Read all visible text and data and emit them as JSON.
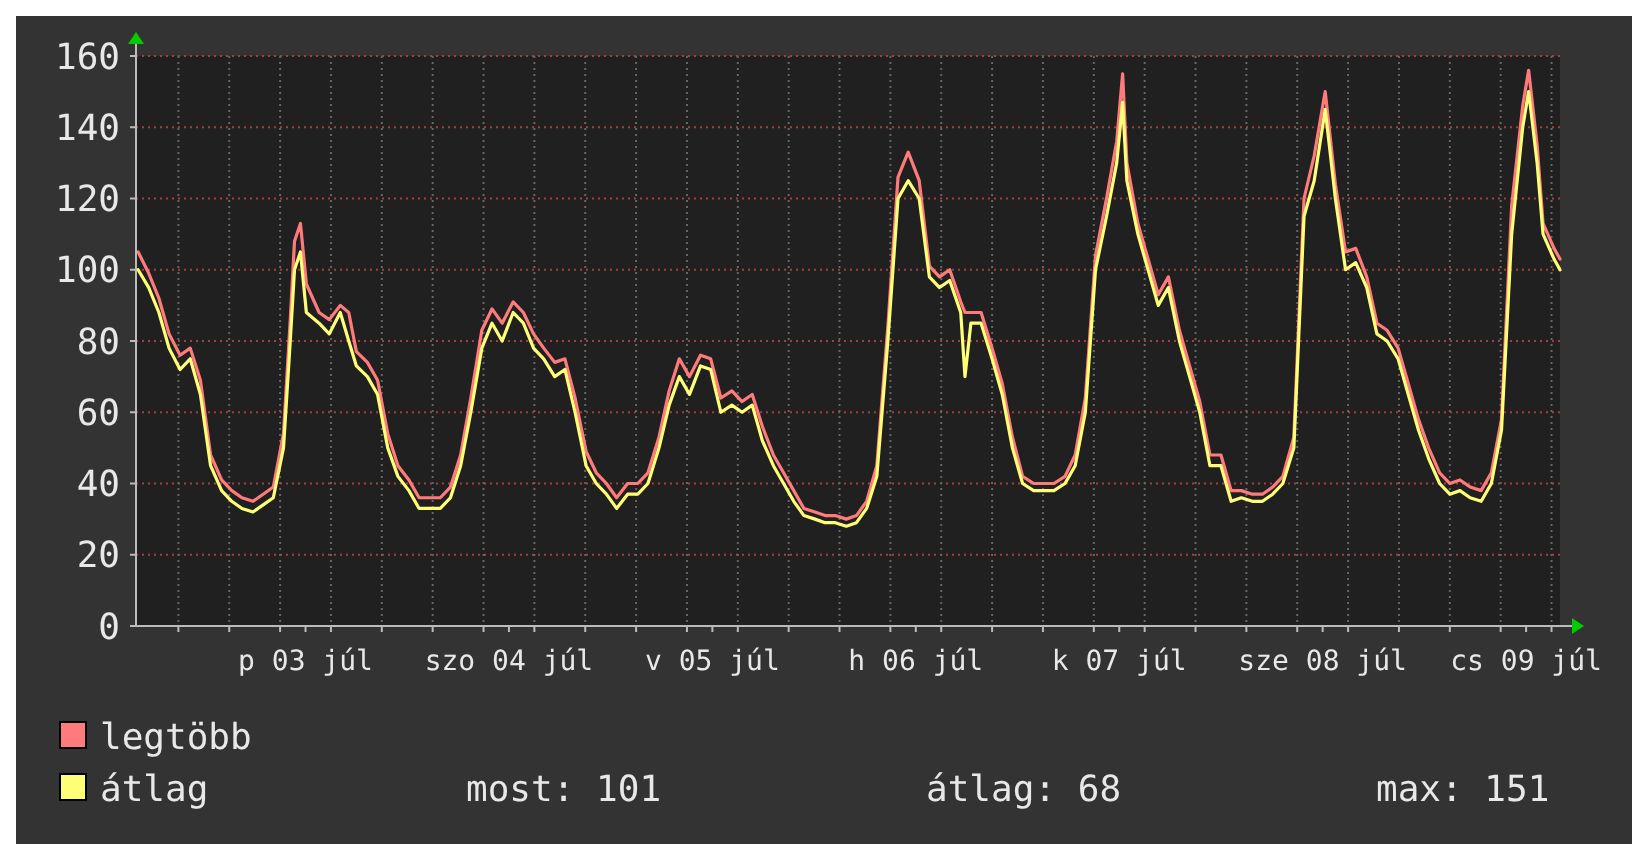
{
  "chart_data": {
    "type": "line",
    "xlim": [
      "--07-02T19:00",
      "--07-09T19:00"
    ],
    "ylim": [
      0,
      160
    ],
    "yticks": [
      0,
      20,
      40,
      60,
      80,
      100,
      120,
      140,
      160
    ],
    "xticks": [
      {
        "value": "--07-03T00:00",
        "label": null
      },
      {
        "value": "--07-03T06:00",
        "label": null
      },
      {
        "value": "--07-03T12:00",
        "label": null
      },
      {
        "value": "--07-03T15:00",
        "label": "p 03 júl"
      },
      {
        "value": "--07-03T18:00",
        "label": null
      },
      {
        "value": "--07-04T00:00",
        "label": null
      },
      {
        "value": "--07-04T06:00",
        "label": null
      },
      {
        "value": "--07-04T12:00",
        "label": null
      },
      {
        "value": "--07-04T15:00",
        "label": "szo 04 júl"
      },
      {
        "value": "--07-04T18:00",
        "label": null
      },
      {
        "value": "--07-05T00:00",
        "label": null
      },
      {
        "value": "--07-05T06:00",
        "label": null
      },
      {
        "value": "--07-05T12:00",
        "label": null
      },
      {
        "value": "--07-05T15:00",
        "label": "v 05 júl"
      },
      {
        "value": "--07-05T18:00",
        "label": null
      },
      {
        "value": "--07-06T00:00",
        "label": null
      },
      {
        "value": "--07-06T06:00",
        "label": null
      },
      {
        "value": "--07-06T12:00",
        "label": null
      },
      {
        "value": "--07-06T15:00",
        "label": "h 06 júl"
      },
      {
        "value": "--07-06T18:00",
        "label": null
      },
      {
        "value": "--07-07T00:00",
        "label": null
      },
      {
        "value": "--07-07T06:00",
        "label": null
      },
      {
        "value": "--07-07T12:00",
        "label": null
      },
      {
        "value": "--07-07T15:00",
        "label": "k 07 júl"
      },
      {
        "value": "--07-07T18:00",
        "label": null
      },
      {
        "value": "--07-08T00:00",
        "label": null
      },
      {
        "value": "--07-08T06:00",
        "label": null
      },
      {
        "value": "--07-08T12:00",
        "label": null
      },
      {
        "value": "--07-08T15:00",
        "label": "sze 08 júl"
      },
      {
        "value": "--07-08T18:00",
        "label": null
      },
      {
        "value": "--07-09T00:00",
        "label": null
      },
      {
        "value": "--07-09T06:00",
        "label": null
      },
      {
        "value": "--07-09T12:00",
        "label": null
      },
      {
        "value": "--07-09T15:00",
        "label": "cs 09 júl"
      },
      {
        "value": "--07-09T18:00",
        "label": null
      }
    ],
    "x": [
      "--07-02T19:15",
      "--07-02T20:30",
      "--07-02T21:42",
      "--07-02T22:54",
      "--07-03T00:12",
      "--07-03T01:24",
      "--07-03T02:36",
      "--07-03T03:48",
      "--07-03T05:06",
      "--07-03T06:18",
      "--07-03T07:30",
      "--07-03T08:48",
      "--07-03T10:00",
      "--07-03T11:12",
      "--07-03T12:24",
      "--07-03T13:12",
      "--07-03T13:42",
      "--07-03T14:24",
      "--07-03T15:06",
      "--07-03T16:36",
      "--07-03T17:48",
      "--07-03T19:06",
      "--07-03T20:06",
      "--07-03T21:00",
      "--07-03T22:18",
      "--07-03T23:30",
      "--07-04T00:42",
      "--07-04T01:54",
      "--07-04T03:12",
      "--07-04T04:24",
      "--07-04T05:36",
      "--07-04T06:54",
      "--07-04T08:06",
      "--07-04T09:18",
      "--07-04T10:30",
      "--07-04T11:48",
      "--07-04T13:00",
      "--07-04T14:12",
      "--07-04T15:30",
      "--07-04T16:42",
      "--07-04T17:54",
      "--07-04T19:06",
      "--07-04T20:24",
      "--07-04T21:36",
      "--07-04T22:48",
      "--07-05T00:06",
      "--07-05T01:18",
      "--07-05T02:30",
      "--07-05T03:42",
      "--07-05T05:00",
      "--07-05T06:12",
      "--07-05T07:24",
      "--07-05T08:42",
      "--07-05T09:54",
      "--07-05T11:06",
      "--07-05T12:18",
      "--07-05T13:36",
      "--07-05T14:48",
      "--07-05T16:00",
      "--07-05T17:18",
      "--07-05T18:30",
      "--07-05T19:42",
      "--07-05T20:54",
      "--07-05T22:12",
      "--07-05T23:24",
      "--07-06T00:36",
      "--07-06T01:48",
      "--07-06T03:06",
      "--07-06T04:18",
      "--07-06T05:30",
      "--07-06T06:48",
      "--07-06T08:00",
      "--07-06T09:12",
      "--07-06T10:24",
      "--07-06T11:42",
      "--07-06T12:54",
      "--07-06T14:06",
      "--07-06T15:24",
      "--07-06T16:36",
      "--07-06T17:48",
      "--07-06T19:00",
      "--07-06T20:18",
      "--07-06T20:48",
      "--07-06T21:30",
      "--07-06T22:42",
      "--07-07T00:00",
      "--07-07T01:12",
      "--07-07T02:24",
      "--07-07T03:36",
      "--07-07T04:54",
      "--07-07T06:06",
      "--07-07T07:18",
      "--07-07T08:36",
      "--07-07T09:48",
      "--07-07T11:00",
      "--07-07T12:12",
      "--07-07T13:30",
      "--07-07T14:42",
      "--07-07T15:24",
      "--07-07T15:54",
      "--07-07T17:12",
      "--07-07T18:24",
      "--07-07T19:36",
      "--07-07T20:48",
      "--07-07T22:06",
      "--07-07T23:18",
      "--07-08T00:30",
      "--07-08T01:42",
      "--07-08T03:00",
      "--07-08T04:12",
      "--07-08T05:24",
      "--07-08T06:42",
      "--07-08T07:54",
      "--07-08T09:06",
      "--07-08T10:18",
      "--07-08T11:36",
      "--07-08T12:48",
      "--07-08T14:00",
      "--07-08T15:18",
      "--07-08T16:30",
      "--07-08T17:42",
      "--07-08T18:54",
      "--07-08T20:12",
      "--07-08T21:24",
      "--07-08T22:36",
      "--07-08T23:54",
      "--07-09T01:06",
      "--07-09T02:18",
      "--07-09T03:30",
      "--07-09T04:48",
      "--07-09T06:00",
      "--07-09T07:12",
      "--07-09T08:24",
      "--07-09T09:42",
      "--07-09T10:54",
      "--07-09T12:06",
      "--07-09T13:18",
      "--07-09T14:36",
      "--07-09T15:18",
      "--07-09T16:18",
      "--07-09T17:00",
      "--07-09T18:18",
      "--07-09T19:00"
    ],
    "series": [
      {
        "name": "legtöbb",
        "color": "#ff7b7b",
        "values": [
          105,
          99,
          92,
          82,
          76,
          78,
          69,
          48,
          41,
          38,
          36,
          35,
          37,
          39,
          54,
          86,
          108,
          113,
          96,
          88,
          86,
          90,
          88,
          77,
          74,
          69,
          54,
          45,
          41,
          36,
          36,
          36,
          39,
          48,
          64,
          83,
          89,
          85,
          91,
          88,
          82,
          78,
          74,
          75,
          64,
          49,
          43,
          40,
          36,
          40,
          40,
          43,
          53,
          66,
          75,
          70,
          76,
          75,
          64,
          66,
          63,
          65,
          56,
          48,
          43,
          38,
          33,
          32,
          31,
          31,
          30,
          31,
          35,
          45,
          84,
          126,
          133,
          125,
          101,
          98,
          100,
          91,
          88,
          88,
          88,
          78,
          68,
          53,
          42,
          40,
          40,
          40,
          42,
          48,
          64,
          104,
          120,
          136,
          155,
          130,
          113,
          103,
          93,
          98,
          83,
          73,
          63,
          48,
          48,
          38,
          38,
          37,
          37,
          39,
          42,
          53,
          120,
          132,
          150,
          124,
          105,
          106,
          98,
          85,
          83,
          78,
          68,
          58,
          50,
          43,
          40,
          41,
          39,
          38,
          43,
          58,
          118,
          146,
          156,
          135,
          113,
          106,
          103
        ]
      },
      {
        "name": "átlag",
        "color": "#ffff77",
        "values": [
          100,
          95,
          88,
          78,
          72,
          75,
          65,
          45,
          38,
          35,
          33,
          32,
          34,
          36,
          50,
          80,
          100,
          105,
          88,
          85,
          82,
          88,
          80,
          73,
          70,
          65,
          50,
          42,
          38,
          33,
          33,
          33,
          36,
          45,
          60,
          78,
          85,
          80,
          88,
          85,
          78,
          75,
          70,
          72,
          60,
          45,
          40,
          37,
          33,
          37,
          37,
          40,
          50,
          62,
          70,
          65,
          73,
          72,
          60,
          62,
          60,
          62,
          52,
          45,
          40,
          35,
          31,
          30,
          29,
          29,
          28,
          29,
          33,
          42,
          80,
          120,
          125,
          120,
          98,
          95,
          97,
          88,
          70,
          85,
          85,
          75,
          65,
          50,
          40,
          38,
          38,
          38,
          40,
          45,
          60,
          100,
          115,
          130,
          147,
          125,
          110,
          100,
          90,
          95,
          80,
          70,
          60,
          45,
          45,
          35,
          36,
          35,
          35,
          37,
          40,
          50,
          115,
          125,
          145,
          120,
          100,
          102,
          95,
          82,
          80,
          75,
          65,
          55,
          47,
          40,
          37,
          38,
          36,
          35,
          40,
          55,
          110,
          140,
          150,
          130,
          110,
          103,
          100
        ]
      }
    ],
    "grid": true,
    "legend": "bottom left",
    "annotations": [
      "most: 101",
      "átlag: 68",
      "max: 151"
    ]
  }
}
